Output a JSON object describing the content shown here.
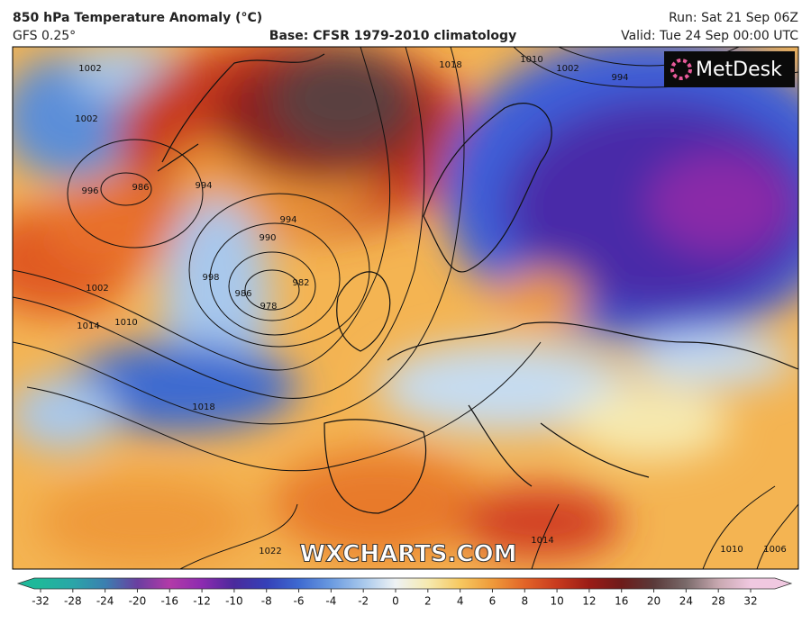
{
  "header": {
    "title": "850 hPa Temperature Anomaly (°C)",
    "model": "GFS 0.25°",
    "base": "Base: CFSR 1979-2010 climatology",
    "run": "Run: Sat 21 Sep 06Z",
    "valid": "Valid: Tue 24 Sep 00:00 UTC"
  },
  "logo": "MetDesk",
  "watermark": "WXCHARTS.COM",
  "isobar_labels": [
    "1018",
    "1002",
    "1002",
    "996",
    "986",
    "994",
    "994",
    "990",
    "998",
    "986",
    "982",
    "978",
    "1002",
    "1010",
    "1014",
    "1018",
    "1022",
    "1014",
    "1010",
    "1006",
    "1010",
    "1002",
    "994"
  ],
  "colorbar": {
    "ticks": [
      -32,
      -28,
      -24,
      -20,
      -16,
      -12,
      -10,
      -8,
      -6,
      -4,
      -2,
      0,
      2,
      4,
      6,
      8,
      10,
      12,
      16,
      20,
      24,
      28,
      32
    ],
    "colors": [
      "#1fb89a",
      "#2aa6a8",
      "#3b7fb0",
      "#6a3fa0",
      "#b23aa8",
      "#8c2bb0",
      "#4a2a9c",
      "#3540b8",
      "#3e6ad0",
      "#6a9ae0",
      "#a8c8ec",
      "#eef2f4",
      "#f6eab0",
      "#f6c860",
      "#ef9a3a",
      "#e26428",
      "#c83a1e",
      "#9a1c16",
      "#6e1c1a",
      "#5a3a3a",
      "#7a6a6a",
      "#c8a8b0",
      "#f0c8e0"
    ]
  }
}
